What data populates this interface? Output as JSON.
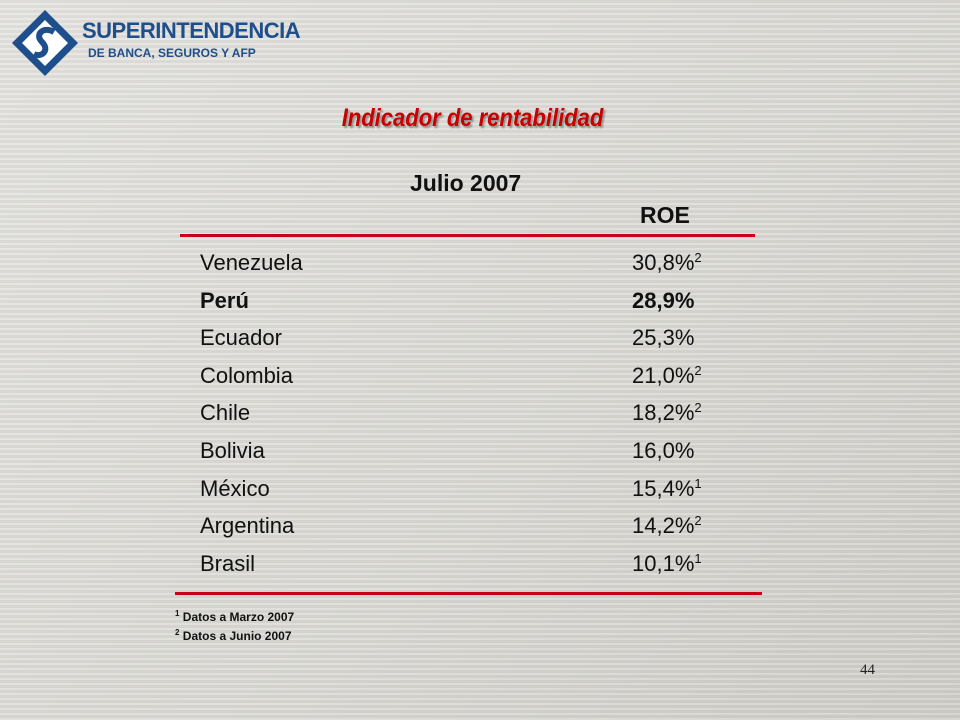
{
  "header": {
    "name": "SUPERINTENDENCIA",
    "subname": "DE BANCA, SEGUROS Y AFP"
  },
  "title": "Indicador de rentabilidad",
  "subtitle": "Julio 2007",
  "table": {
    "column_header": "ROE",
    "rows": [
      {
        "country": "Venezuela",
        "value": "30,8%",
        "note": "2"
      },
      {
        "country": "Perú",
        "value": "28,9%",
        "bold": true
      },
      {
        "country": "Ecuador",
        "value": "25,3%"
      },
      {
        "country": "Colombia",
        "value": "21,0%",
        "note": "2"
      },
      {
        "country": "Chile",
        "value": "18,2%",
        "note": "2"
      },
      {
        "country": "Bolivia",
        "value": "16,0%"
      },
      {
        "country": "México",
        "value": "15,4%",
        "note": "1"
      },
      {
        "country": "Argentina",
        "value": "14,2%",
        "note": "2"
      },
      {
        "country": "Brasil",
        "value": "10,1%",
        "note": "1"
      }
    ]
  },
  "footnotes": [
    {
      "mark": "1",
      "text": "Datos a Marzo 2007"
    },
    {
      "mark": "2",
      "text": "Datos a Junio 2007"
    }
  ],
  "page_number": "44"
}
